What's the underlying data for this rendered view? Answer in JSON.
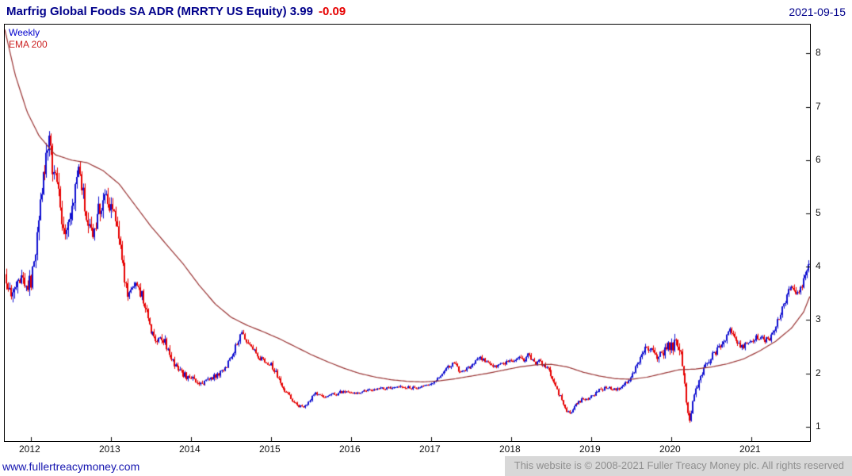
{
  "header": {
    "title": "Marfrig Global Foods SA ADR (MRRTY US Equity) 3.99",
    "change": "-0.09",
    "date": "2021-09-15"
  },
  "legend": {
    "timeframe": "Weekly",
    "overlay": "EMA 200"
  },
  "footer": {
    "site": "www.fullertreacymoney.com",
    "copyright": "This website is © 2008-2021 Fuller Treacy Money plc. All rights reserved"
  },
  "chart_data": {
    "type": "candlestick",
    "title": "Marfrig Global Foods SA ADR (MRRTY US Equity)",
    "instrument": "MRRTY US Equity",
    "timeframe": "Weekly",
    "overlay": "EMA 200",
    "last_price": 3.99,
    "change": -0.09,
    "as_of_date": "2021-09-15",
    "x_range": [
      2011.67,
      2021.73
    ],
    "ylim": [
      0.73,
      8.54
    ],
    "yticks": [
      1,
      2,
      3,
      4,
      5,
      6,
      7,
      8
    ],
    "xticks": [
      2012,
      2013,
      2014,
      2015,
      2016,
      2017,
      2018,
      2019,
      2020,
      2021
    ],
    "grid": "off",
    "legend_position": "top-left-inside",
    "colors": {
      "up": "#0f0fd0",
      "down": "#e60000",
      "ema": "#993333",
      "title": "#00008b",
      "change": "#e60000",
      "legend_weekly": "#0000cd",
      "legend_ema": "#cc2222",
      "link": "#1515b0",
      "copyright_text": "#8f8f8f",
      "copyright_bg": "#d8d8d8",
      "axis_text": "#111111"
    },
    "price_anchors": [
      [
        2011.67,
        3.8
      ],
      [
        2011.75,
        3.45
      ],
      [
        2011.83,
        3.9
      ],
      [
        2011.92,
        3.6
      ],
      [
        2012.0,
        3.75
      ],
      [
        2012.06,
        4.35
      ],
      [
        2012.12,
        5.2
      ],
      [
        2012.18,
        6.1
      ],
      [
        2012.22,
        6.45
      ],
      [
        2012.27,
        5.9
      ],
      [
        2012.33,
        5.5
      ],
      [
        2012.4,
        4.65
      ],
      [
        2012.46,
        4.9
      ],
      [
        2012.52,
        5.1
      ],
      [
        2012.58,
        5.95
      ],
      [
        2012.63,
        5.6
      ],
      [
        2012.7,
        4.75
      ],
      [
        2012.78,
        4.55
      ],
      [
        2012.85,
        5.1
      ],
      [
        2012.93,
        5.35
      ],
      [
        2013.0,
        5.15
      ],
      [
        2013.07,
        4.85
      ],
      [
        2013.14,
        4.0
      ],
      [
        2013.21,
        3.45
      ],
      [
        2013.29,
        3.7
      ],
      [
        2013.36,
        3.55
      ],
      [
        2013.43,
        3.2
      ],
      [
        2013.5,
        2.75
      ],
      [
        2013.57,
        2.6
      ],
      [
        2013.64,
        2.7
      ],
      [
        2013.71,
        2.4
      ],
      [
        2013.79,
        2.15
      ],
      [
        2013.86,
        2.05
      ],
      [
        2013.93,
        1.95
      ],
      [
        2014.0,
        1.9
      ],
      [
        2014.1,
        1.82
      ],
      [
        2014.2,
        1.85
      ],
      [
        2014.3,
        1.95
      ],
      [
        2014.4,
        2.05
      ],
      [
        2014.5,
        2.3
      ],
      [
        2014.58,
        2.6
      ],
      [
        2014.64,
        2.75
      ],
      [
        2014.7,
        2.6
      ],
      [
        2014.78,
        2.45
      ],
      [
        2014.86,
        2.3
      ],
      [
        2014.93,
        2.25
      ],
      [
        2015.0,
        2.15
      ],
      [
        2015.08,
        1.95
      ],
      [
        2015.16,
        1.7
      ],
      [
        2015.24,
        1.55
      ],
      [
        2015.32,
        1.42
      ],
      [
        2015.4,
        1.33
      ],
      [
        2015.48,
        1.5
      ],
      [
        2015.56,
        1.62
      ],
      [
        2015.64,
        1.55
      ],
      [
        2015.72,
        1.6
      ],
      [
        2015.8,
        1.62
      ],
      [
        2015.9,
        1.66
      ],
      [
        2016.0,
        1.62
      ],
      [
        2016.15,
        1.66
      ],
      [
        2016.3,
        1.7
      ],
      [
        2016.45,
        1.73
      ],
      [
        2016.6,
        1.76
      ],
      [
        2016.75,
        1.72
      ],
      [
        2016.9,
        1.76
      ],
      [
        2017.0,
        1.82
      ],
      [
        2017.1,
        1.92
      ],
      [
        2017.2,
        2.1
      ],
      [
        2017.28,
        2.2
      ],
      [
        2017.36,
        2.02
      ],
      [
        2017.44,
        2.08
      ],
      [
        2017.52,
        2.15
      ],
      [
        2017.6,
        2.3
      ],
      [
        2017.68,
        2.22
      ],
      [
        2017.76,
        2.12
      ],
      [
        2017.85,
        2.15
      ],
      [
        2017.93,
        2.2
      ],
      [
        2018.0,
        2.22
      ],
      [
        2018.08,
        2.3
      ],
      [
        2018.16,
        2.25
      ],
      [
        2018.22,
        2.35
      ],
      [
        2018.28,
        2.18
      ],
      [
        2018.36,
        2.22
      ],
      [
        2018.44,
        2.1
      ],
      [
        2018.52,
        1.92
      ],
      [
        2018.6,
        1.6
      ],
      [
        2018.68,
        1.3
      ],
      [
        2018.74,
        1.22
      ],
      [
        2018.8,
        1.42
      ],
      [
        2018.88,
        1.5
      ],
      [
        2018.95,
        1.52
      ],
      [
        2019.0,
        1.56
      ],
      [
        2019.1,
        1.7
      ],
      [
        2019.2,
        1.74
      ],
      [
        2019.3,
        1.68
      ],
      [
        2019.4,
        1.78
      ],
      [
        2019.5,
        1.92
      ],
      [
        2019.58,
        2.2
      ],
      [
        2019.65,
        2.45
      ],
      [
        2019.72,
        2.5
      ],
      [
        2019.8,
        2.32
      ],
      [
        2019.88,
        2.38
      ],
      [
        2019.95,
        2.5
      ],
      [
        2020.0,
        2.55
      ],
      [
        2020.08,
        2.5
      ],
      [
        2020.14,
        2.2
      ],
      [
        2020.19,
        1.45
      ],
      [
        2020.23,
        1.05
      ],
      [
        2020.28,
        1.55
      ],
      [
        2020.34,
        1.9
      ],
      [
        2020.42,
        2.15
      ],
      [
        2020.5,
        2.3
      ],
      [
        2020.58,
        2.45
      ],
      [
        2020.66,
        2.6
      ],
      [
        2020.73,
        2.85
      ],
      [
        2020.8,
        2.6
      ],
      [
        2020.88,
        2.5
      ],
      [
        2020.95,
        2.55
      ],
      [
        2021.0,
        2.6
      ],
      [
        2021.08,
        2.7
      ],
      [
        2021.16,
        2.62
      ],
      [
        2021.24,
        2.65
      ],
      [
        2021.32,
        2.95
      ],
      [
        2021.4,
        3.3
      ],
      [
        2021.48,
        3.6
      ],
      [
        2021.54,
        3.5
      ],
      [
        2021.6,
        3.62
      ],
      [
        2021.66,
        3.75
      ],
      [
        2021.7,
        4.1
      ],
      [
        2021.73,
        3.99
      ]
    ],
    "ema_anchors": [
      [
        2011.67,
        8.45
      ],
      [
        2011.8,
        7.6
      ],
      [
        2011.95,
        6.9
      ],
      [
        2012.1,
        6.45
      ],
      [
        2012.3,
        6.1
      ],
      [
        2012.5,
        6.0
      ],
      [
        2012.7,
        5.95
      ],
      [
        2012.9,
        5.8
      ],
      [
        2013.1,
        5.55
      ],
      [
        2013.3,
        5.15
      ],
      [
        2013.5,
        4.75
      ],
      [
        2013.7,
        4.4
      ],
      [
        2013.9,
        4.05
      ],
      [
        2014.1,
        3.65
      ],
      [
        2014.3,
        3.3
      ],
      [
        2014.5,
        3.05
      ],
      [
        2014.7,
        2.9
      ],
      [
        2014.9,
        2.78
      ],
      [
        2015.1,
        2.65
      ],
      [
        2015.3,
        2.5
      ],
      [
        2015.5,
        2.35
      ],
      [
        2015.7,
        2.22
      ],
      [
        2015.9,
        2.1
      ],
      [
        2016.1,
        2.0
      ],
      [
        2016.3,
        1.93
      ],
      [
        2016.5,
        1.88
      ],
      [
        2016.7,
        1.85
      ],
      [
        2016.9,
        1.84
      ],
      [
        2017.1,
        1.86
      ],
      [
        2017.3,
        1.9
      ],
      [
        2017.5,
        1.95
      ],
      [
        2017.7,
        2.0
      ],
      [
        2017.9,
        2.06
      ],
      [
        2018.1,
        2.12
      ],
      [
        2018.3,
        2.16
      ],
      [
        2018.5,
        2.17
      ],
      [
        2018.7,
        2.12
      ],
      [
        2018.9,
        2.02
      ],
      [
        2019.1,
        1.95
      ],
      [
        2019.3,
        1.9
      ],
      [
        2019.5,
        1.89
      ],
      [
        2019.7,
        1.93
      ],
      [
        2019.9,
        2.0
      ],
      [
        2020.1,
        2.07
      ],
      [
        2020.3,
        2.08
      ],
      [
        2020.5,
        2.12
      ],
      [
        2020.7,
        2.18
      ],
      [
        2020.9,
        2.27
      ],
      [
        2021.1,
        2.42
      ],
      [
        2021.3,
        2.6
      ],
      [
        2021.5,
        2.85
      ],
      [
        2021.65,
        3.15
      ],
      [
        2021.73,
        3.45
      ]
    ],
    "volatility_anchors": [
      [
        2011.67,
        0.04
      ],
      [
        2012.3,
        0.035
      ],
      [
        2013.0,
        0.032
      ],
      [
        2013.8,
        0.03
      ],
      [
        2014.5,
        0.022
      ],
      [
        2015.3,
        0.025
      ],
      [
        2016.0,
        0.014
      ],
      [
        2017.0,
        0.016
      ],
      [
        2018.0,
        0.016
      ],
      [
        2018.6,
        0.025
      ],
      [
        2019.3,
        0.018
      ],
      [
        2019.7,
        0.028
      ],
      [
        2020.2,
        0.055
      ],
      [
        2020.5,
        0.028
      ],
      [
        2021.0,
        0.02
      ],
      [
        2021.5,
        0.022
      ],
      [
        2021.73,
        0.03
      ]
    ]
  }
}
